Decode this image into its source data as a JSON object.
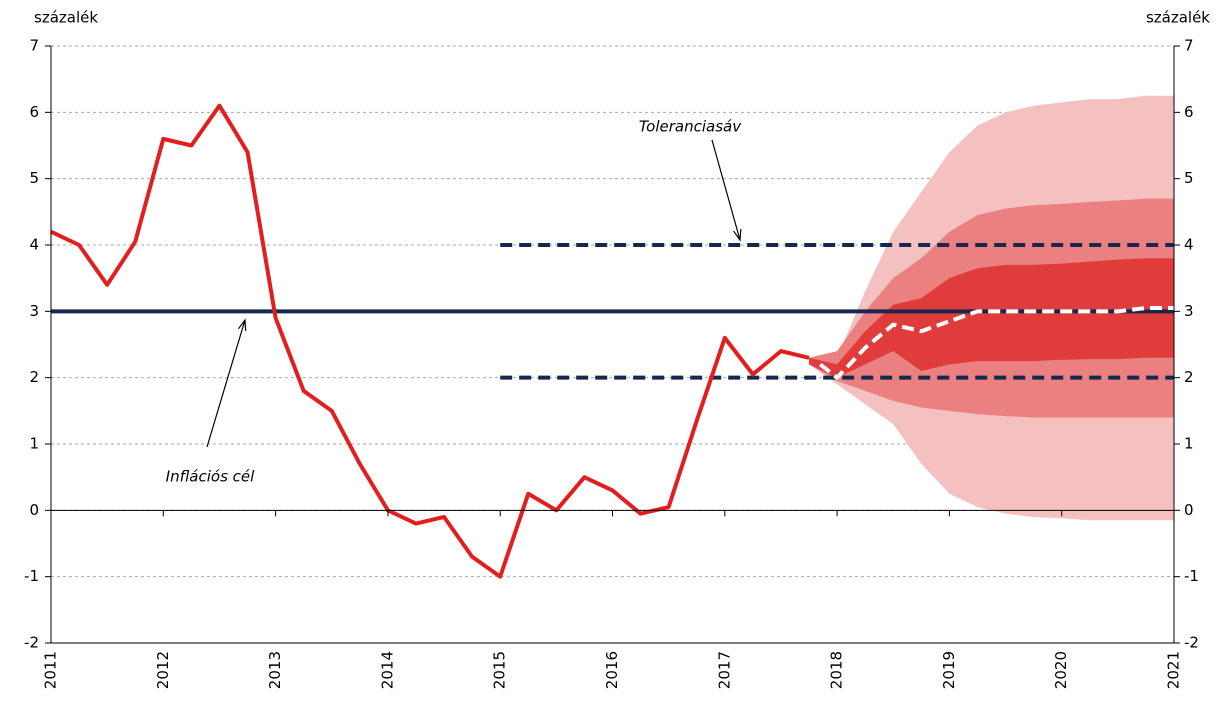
{
  "chart_data": {
    "type": "fan",
    "y_label_left": "százalék",
    "y_label_right": "százalék",
    "xlim": [
      2011,
      2021
    ],
    "xticks": [
      2011,
      2012,
      2013,
      2014,
      2015,
      2016,
      2017,
      2018,
      2019,
      2020,
      2021
    ],
    "ylim": [
      -2,
      7
    ],
    "yticks": [
      -2,
      -1,
      0,
      1,
      2,
      3,
      4,
      5,
      6,
      7
    ],
    "y2lim": [
      -2,
      7
    ],
    "y2ticks": [
      -2,
      -1,
      0,
      1,
      2,
      3,
      4,
      5,
      6,
      7
    ],
    "grid": true,
    "fan_x": [
      2017.75,
      2018,
      2018.25,
      2018.5,
      2018.75,
      2019,
      2019.25,
      2019.5,
      2019.75,
      2020,
      2020.25,
      2020.5,
      2020.75,
      2021
    ],
    "bands": [
      {
        "color": "#f4c0c0",
        "upper": [
          2.3,
          2.3,
          3.3,
          4.2,
          4.8,
          5.4,
          5.8,
          6.0,
          6.1,
          6.15,
          6.2,
          6.2,
          6.25,
          6.25
        ],
        "lower": [
          2.2,
          1.9,
          1.6,
          1.3,
          0.7,
          0.25,
          0.05,
          -0.05,
          -0.1,
          -0.12,
          -0.15,
          -0.15,
          -0.15,
          -0.15
        ]
      },
      {
        "color": "#eb8080",
        "upper": [
          2.3,
          2.4,
          3.0,
          3.5,
          3.8,
          4.2,
          4.45,
          4.55,
          4.6,
          4.62,
          4.65,
          4.67,
          4.7,
          4.7
        ],
        "lower": [
          2.2,
          1.95,
          1.8,
          1.65,
          1.55,
          1.5,
          1.45,
          1.42,
          1.4,
          1.4,
          1.4,
          1.4,
          1.4,
          1.4
        ]
      },
      {
        "color": "#e03c3c",
        "upper": [
          2.3,
          2.2,
          2.7,
          3.1,
          3.2,
          3.5,
          3.65,
          3.7,
          3.7,
          3.72,
          3.75,
          3.78,
          3.8,
          3.8
        ],
        "lower": [
          2.2,
          2.0,
          2.2,
          2.4,
          2.1,
          2.2,
          2.25,
          2.25,
          2.25,
          2.27,
          2.28,
          2.28,
          2.3,
          2.3
        ]
      }
    ],
    "series": [
      {
        "color": "#e31e1e",
        "style": "solid",
        "x": [
          2011,
          2011.25,
          2011.5,
          2011.75,
          2012,
          2012.25,
          2012.5,
          2012.75,
          2013,
          2013.25,
          2013.5,
          2013.75,
          2014,
          2014.25,
          2014.5,
          2014.75,
          2015,
          2015.25,
          2015.5,
          2015.75,
          2016,
          2016.25,
          2016.5,
          2016.75,
          2017,
          2017.25,
          2017.5,
          2017.75
        ],
        "values": [
          4.2,
          4.0,
          3.4,
          4.05,
          5.6,
          5.5,
          6.1,
          5.4,
          2.9,
          1.8,
          1.5,
          0.7,
          0.0,
          -0.2,
          -0.1,
          -0.7,
          -1.0,
          0.25,
          0.0,
          0.5,
          0.3,
          -0.05,
          0.05,
          1.35,
          2.6,
          2.05,
          2.4,
          2.3
        ]
      },
      {
        "color": "#ffffff",
        "style": "dashed",
        "x": [
          2017.85,
          2018,
          2018.25,
          2018.5,
          2018.75,
          2019,
          2019.25,
          2019.5,
          2019.75,
          2020,
          2020.25,
          2020.5,
          2020.75,
          2021
        ],
        "values": [
          2.2,
          2.0,
          2.45,
          2.8,
          2.7,
          2.85,
          3.0,
          3.0,
          3.0,
          3.0,
          3.0,
          3.0,
          3.05,
          3.05
        ]
      }
    ],
    "reference_lines": [
      {
        "value": 3,
        "color": "#16284e",
        "style": "solid"
      },
      {
        "value": 4,
        "from": 2015,
        "to": 2021,
        "color": "#16284e",
        "style": "dashed"
      },
      {
        "value": 2,
        "from": 2015,
        "to": 2021,
        "color": "#16284e",
        "style": "dashed"
      }
    ],
    "annotations": [
      "Toleranciasáv",
      "Inflációs cél"
    ]
  }
}
